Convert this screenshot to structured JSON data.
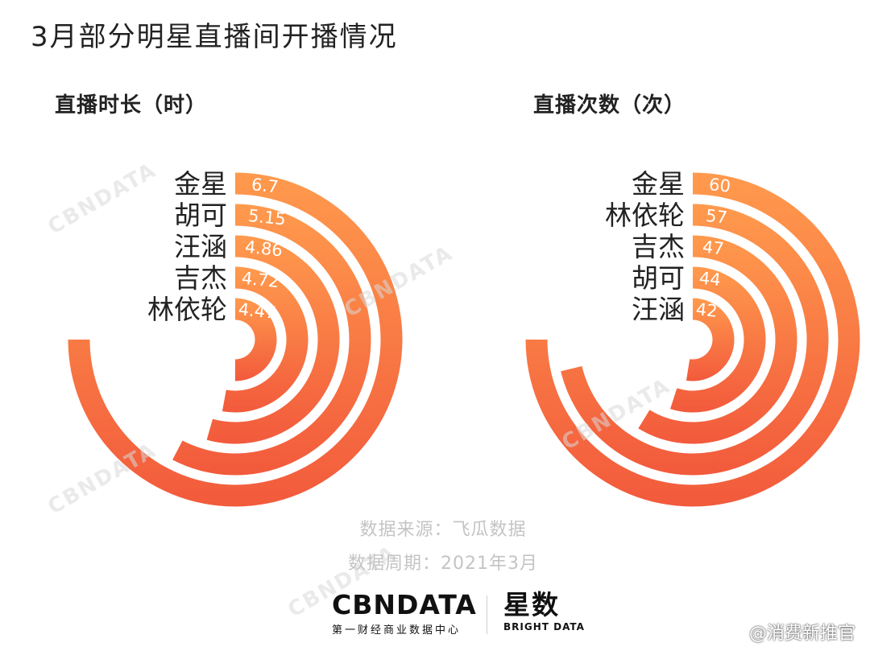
{
  "page_title": "3月部分明星直播间开播情况",
  "chart_data": [
    {
      "type": "radial-bar",
      "title": "直播时长（时）",
      "categories": [
        "金星",
        "胡可",
        "汪涵",
        "吉杰",
        "林依轮"
      ],
      "values": [
        6.7,
        5.15,
        4.86,
        4.72,
        4.47
      ],
      "value_labels": [
        "6.7",
        "5.15",
        "4.86",
        "4.72",
        "4.47"
      ],
      "max": 6.7
    },
    {
      "type": "radial-bar",
      "title": "直播次数（次）",
      "categories": [
        "金星",
        "林依轮",
        "吉杰",
        "胡可",
        "汪涵"
      ],
      "values": [
        60,
        57,
        47,
        44,
        42
      ],
      "value_labels": [
        "60",
        "57",
        "47",
        "44",
        "42"
      ],
      "max": 60
    }
  ],
  "colors": {
    "bar_start": "#ff9a4d",
    "bar_end": "#f25a3c"
  },
  "footer": {
    "source": "数据来源：飞瓜数据",
    "period": "数据周期：2021年3月"
  },
  "watermark_text": "CBNDATA",
  "logo": {
    "main": "CBNDATA",
    "sub": "第一财经商业数据中心",
    "brand2_main": "星数",
    "brand2_sub": "BRIGHT DATA"
  },
  "corner_mark": "@消费新推官"
}
